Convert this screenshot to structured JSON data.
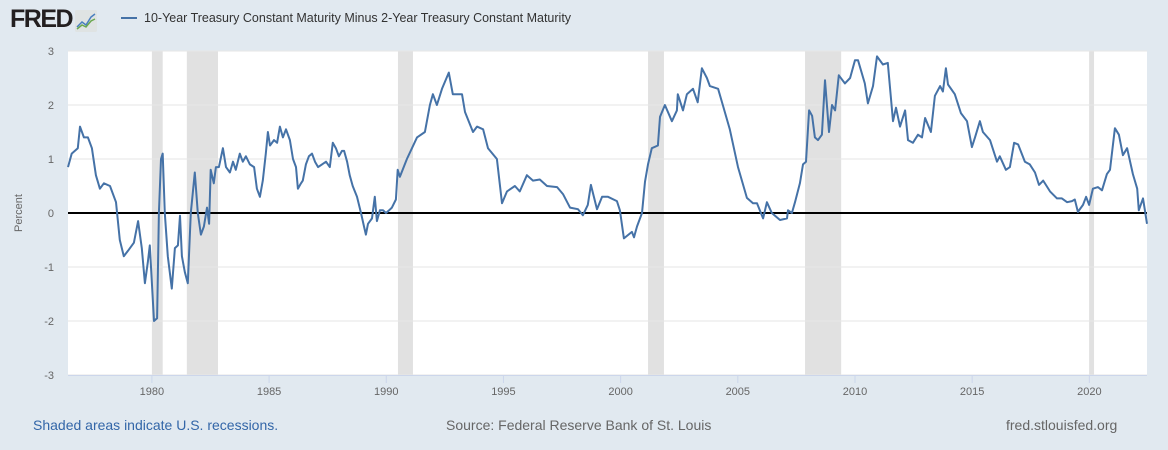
{
  "header": {
    "logo_text": "FRED",
    "legend_label": "10-Year Treasury Constant Maturity Minus 2-Year Treasury Constant Maturity",
    "series_color": "#4572a7"
  },
  "footer": {
    "recession_note": "Shaded areas indicate U.S. recessions.",
    "source": "Source: Federal Reserve Bank of St. Louis",
    "site": "fred.stlouisfed.org"
  },
  "chart_data": {
    "type": "line",
    "title": "10-Year Treasury Constant Maturity Minus 2-Year Treasury Constant Maturity",
    "xlabel": "",
    "ylabel": "Percent",
    "xlim": [
      1976.42,
      2022.46
    ],
    "ylim": [
      -3,
      3
    ],
    "x_ticks": [
      1980,
      1985,
      1990,
      1995,
      2000,
      2005,
      2010,
      2015,
      2020
    ],
    "x_tick_labels": [
      "1980",
      "1985",
      "1990",
      "1995",
      "2000",
      "2005",
      "2010",
      "2015",
      "2020"
    ],
    "y_ticks": [
      -3,
      -2,
      -1,
      0,
      1,
      2,
      3
    ],
    "y_tick_labels": [
      "-3",
      "-2",
      "-1",
      "0",
      "1",
      "2",
      "3"
    ],
    "grid": true,
    "legend_position": "top-left",
    "zero_line": 0,
    "recessions": [
      [
        1980.0,
        1980.46
      ],
      [
        1981.49,
        1982.82
      ],
      [
        1990.5,
        1991.14
      ],
      [
        2001.17,
        2001.85
      ],
      [
        2007.87,
        2009.41
      ],
      [
        2019.99,
        2020.2
      ]
    ],
    "series": [
      {
        "name": "10-Year Treasury Constant Maturity Minus 2-Year Treasury Constant Maturity",
        "points": [
          [
            1976.42,
            0.85
          ],
          [
            1976.58,
            1.1
          ],
          [
            1976.84,
            1.2
          ],
          [
            1976.93,
            1.6
          ],
          [
            1977.1,
            1.4
          ],
          [
            1977.27,
            1.4
          ],
          [
            1977.44,
            1.2
          ],
          [
            1977.61,
            0.7
          ],
          [
            1977.78,
            0.45
          ],
          [
            1977.95,
            0.55
          ],
          [
            1978.21,
            0.5
          ],
          [
            1978.47,
            0.2
          ],
          [
            1978.63,
            -0.5
          ],
          [
            1978.8,
            -0.8
          ],
          [
            1978.98,
            -0.7
          ],
          [
            1979.23,
            -0.55
          ],
          [
            1979.41,
            -0.15
          ],
          [
            1979.57,
            -0.65
          ],
          [
            1979.7,
            -1.3
          ],
          [
            1979.83,
            -0.9
          ],
          [
            1979.91,
            -0.6
          ],
          [
            1980.09,
            -2.0
          ],
          [
            1980.22,
            -1.95
          ],
          [
            1980.3,
            0.0
          ],
          [
            1980.39,
            1.0
          ],
          [
            1980.46,
            1.1
          ],
          [
            1980.55,
            0.0
          ],
          [
            1980.68,
            -0.8
          ],
          [
            1980.85,
            -1.4
          ],
          [
            1980.98,
            -0.65
          ],
          [
            1981.11,
            -0.6
          ],
          [
            1981.2,
            -0.05
          ],
          [
            1981.28,
            -0.8
          ],
          [
            1981.41,
            -1.1
          ],
          [
            1981.53,
            -1.3
          ],
          [
            1981.66,
            0.0
          ],
          [
            1981.83,
            0.75
          ],
          [
            1981.96,
            0.0
          ],
          [
            1982.09,
            -0.4
          ],
          [
            1982.22,
            -0.25
          ],
          [
            1982.35,
            0.1
          ],
          [
            1982.44,
            -0.2
          ],
          [
            1982.51,
            0.8
          ],
          [
            1982.64,
            0.55
          ],
          [
            1982.73,
            0.85
          ],
          [
            1982.86,
            0.85
          ],
          [
            1983.03,
            1.2
          ],
          [
            1983.16,
            0.85
          ],
          [
            1983.33,
            0.75
          ],
          [
            1983.46,
            0.95
          ],
          [
            1983.58,
            0.8
          ],
          [
            1983.75,
            1.1
          ],
          [
            1983.88,
            0.95
          ],
          [
            1984.01,
            1.05
          ],
          [
            1984.18,
            0.9
          ],
          [
            1984.36,
            0.85
          ],
          [
            1984.48,
            0.45
          ],
          [
            1984.61,
            0.3
          ],
          [
            1984.73,
            0.6
          ],
          [
            1984.86,
            1.1
          ],
          [
            1984.95,
            1.5
          ],
          [
            1985.04,
            1.25
          ],
          [
            1985.21,
            1.35
          ],
          [
            1985.34,
            1.3
          ],
          [
            1985.46,
            1.6
          ],
          [
            1985.59,
            1.4
          ],
          [
            1985.72,
            1.55
          ],
          [
            1985.89,
            1.35
          ],
          [
            1986.02,
            1.0
          ],
          [
            1986.15,
            0.85
          ],
          [
            1986.23,
            0.45
          ],
          [
            1986.36,
            0.55
          ],
          [
            1986.44,
            0.6
          ],
          [
            1986.57,
            0.9
          ],
          [
            1986.7,
            1.05
          ],
          [
            1986.83,
            1.1
          ],
          [
            1986.96,
            0.95
          ],
          [
            1987.09,
            0.85
          ],
          [
            1987.26,
            0.9
          ],
          [
            1987.43,
            0.95
          ],
          [
            1987.59,
            0.85
          ],
          [
            1987.72,
            1.3
          ],
          [
            1987.85,
            1.2
          ],
          [
            1987.98,
            1.05
          ],
          [
            1988.11,
            1.15
          ],
          [
            1988.2,
            1.15
          ],
          [
            1988.33,
            0.95
          ],
          [
            1988.44,
            0.7
          ],
          [
            1988.57,
            0.5
          ],
          [
            1988.75,
            0.3
          ],
          [
            1988.92,
            0.0
          ],
          [
            1989.05,
            -0.25
          ],
          [
            1989.13,
            -0.4
          ],
          [
            1989.22,
            -0.2
          ],
          [
            1989.39,
            -0.1
          ],
          [
            1989.51,
            0.3
          ],
          [
            1989.6,
            -0.15
          ],
          [
            1989.73,
            0.05
          ],
          [
            1989.86,
            0.05
          ],
          [
            1989.99,
            0.0
          ],
          [
            1990.12,
            0.05
          ],
          [
            1990.24,
            0.1
          ],
          [
            1990.41,
            0.25
          ],
          [
            1990.49,
            0.8
          ],
          [
            1990.58,
            0.67
          ],
          [
            1990.88,
            1.0
          ],
          [
            1991.31,
            1.4
          ],
          [
            1991.65,
            1.5
          ],
          [
            1991.86,
            2.0
          ],
          [
            1991.99,
            2.2
          ],
          [
            1992.16,
            2.0
          ],
          [
            1992.38,
            2.3
          ],
          [
            1992.67,
            2.6
          ],
          [
            1992.84,
            2.2
          ],
          [
            1993.23,
            2.2
          ],
          [
            1993.36,
            1.87
          ],
          [
            1993.7,
            1.5
          ],
          [
            1993.87,
            1.6
          ],
          [
            1994.13,
            1.55
          ],
          [
            1994.34,
            1.2
          ],
          [
            1994.72,
            1.0
          ],
          [
            1994.94,
            0.18
          ],
          [
            1995.15,
            0.4
          ],
          [
            1995.49,
            0.5
          ],
          [
            1995.7,
            0.4
          ],
          [
            1996.0,
            0.7
          ],
          [
            1996.26,
            0.6
          ],
          [
            1996.55,
            0.62
          ],
          [
            1996.86,
            0.5
          ],
          [
            1997.29,
            0.48
          ],
          [
            1997.54,
            0.35
          ],
          [
            1997.84,
            0.1
          ],
          [
            1998.18,
            0.07
          ],
          [
            1998.39,
            -0.04
          ],
          [
            1998.6,
            0.15
          ],
          [
            1998.73,
            0.52
          ],
          [
            1998.99,
            0.07
          ],
          [
            1999.21,
            0.3
          ],
          [
            1999.46,
            0.3
          ],
          [
            1999.84,
            0.22
          ],
          [
            1999.97,
            0.05
          ],
          [
            2000.14,
            -0.47
          ],
          [
            2000.48,
            -0.35
          ],
          [
            2000.57,
            -0.45
          ],
          [
            2000.7,
            -0.25
          ],
          [
            2000.91,
            0.0
          ],
          [
            2001.04,
            0.58
          ],
          [
            2001.17,
            0.9
          ],
          [
            2001.33,
            1.2
          ],
          [
            2001.59,
            1.25
          ],
          [
            2001.68,
            1.78
          ],
          [
            2001.89,
            2.0
          ],
          [
            2002.19,
            1.7
          ],
          [
            2002.4,
            1.9
          ],
          [
            2002.44,
            2.2
          ],
          [
            2002.66,
            1.9
          ],
          [
            2002.83,
            2.2
          ],
          [
            2003.09,
            2.3
          ],
          [
            2003.29,
            2.05
          ],
          [
            2003.47,
            2.68
          ],
          [
            2003.68,
            2.5
          ],
          [
            2003.81,
            2.35
          ],
          [
            2004.16,
            2.3
          ],
          [
            2004.36,
            2.0
          ],
          [
            2004.66,
            1.55
          ],
          [
            2005.01,
            0.85
          ],
          [
            2005.39,
            0.28
          ],
          [
            2005.65,
            0.18
          ],
          [
            2005.82,
            0.18
          ],
          [
            2006.08,
            -0.1
          ],
          [
            2006.24,
            0.2
          ],
          [
            2006.45,
            0.0
          ],
          [
            2006.8,
            -0.13
          ],
          [
            2007.1,
            -0.1
          ],
          [
            2007.14,
            0.05
          ],
          [
            2007.31,
            0.0
          ],
          [
            2007.44,
            0.2
          ],
          [
            2007.65,
            0.55
          ],
          [
            2007.78,
            0.9
          ],
          [
            2007.91,
            0.95
          ],
          [
            2008.04,
            1.9
          ],
          [
            2008.17,
            1.8
          ],
          [
            2008.29,
            1.4
          ],
          [
            2008.42,
            1.35
          ],
          [
            2008.59,
            1.45
          ],
          [
            2008.72,
            2.46
          ],
          [
            2008.89,
            1.5
          ],
          [
            2009.02,
            2.0
          ],
          [
            2009.15,
            1.9
          ],
          [
            2009.31,
            2.55
          ],
          [
            2009.57,
            2.4
          ],
          [
            2009.79,
            2.5
          ],
          [
            2010.0,
            2.83
          ],
          [
            2010.13,
            2.83
          ],
          [
            2010.42,
            2.4
          ],
          [
            2010.55,
            2.03
          ],
          [
            2010.77,
            2.35
          ],
          [
            2010.94,
            2.9
          ],
          [
            2011.19,
            2.75
          ],
          [
            2011.4,
            2.78
          ],
          [
            2011.62,
            1.7
          ],
          [
            2011.75,
            1.95
          ],
          [
            2011.92,
            1.6
          ],
          [
            2012.14,
            1.9
          ],
          [
            2012.26,
            1.35
          ],
          [
            2012.47,
            1.3
          ],
          [
            2012.69,
            1.45
          ],
          [
            2012.86,
            1.4
          ],
          [
            2012.99,
            1.76
          ],
          [
            2013.24,
            1.5
          ],
          [
            2013.41,
            2.17
          ],
          [
            2013.63,
            2.35
          ],
          [
            2013.75,
            2.25
          ],
          [
            2013.88,
            2.68
          ],
          [
            2013.97,
            2.38
          ],
          [
            2014.26,
            2.2
          ],
          [
            2014.52,
            1.85
          ],
          [
            2014.78,
            1.7
          ],
          [
            2014.99,
            1.22
          ],
          [
            2015.12,
            1.4
          ],
          [
            2015.33,
            1.7
          ],
          [
            2015.46,
            1.5
          ],
          [
            2015.76,
            1.35
          ],
          [
            2016.06,
            0.95
          ],
          [
            2016.18,
            1.05
          ],
          [
            2016.44,
            0.8
          ],
          [
            2016.61,
            0.85
          ],
          [
            2016.79,
            1.3
          ],
          [
            2016.96,
            1.27
          ],
          [
            2017.25,
            0.95
          ],
          [
            2017.46,
            0.9
          ],
          [
            2017.68,
            0.75
          ],
          [
            2017.85,
            0.52
          ],
          [
            2018.03,
            0.6
          ],
          [
            2018.32,
            0.4
          ],
          [
            2018.62,
            0.27
          ],
          [
            2018.83,
            0.27
          ],
          [
            2019.05,
            0.2
          ],
          [
            2019.26,
            0.22
          ],
          [
            2019.38,
            0.25
          ],
          [
            2019.51,
            0.02
          ],
          [
            2019.73,
            0.15
          ],
          [
            2019.86,
            0.3
          ],
          [
            2019.99,
            0.15
          ],
          [
            2020.15,
            0.45
          ],
          [
            2020.37,
            0.48
          ],
          [
            2020.54,
            0.42
          ],
          [
            2020.75,
            0.72
          ],
          [
            2020.88,
            0.8
          ],
          [
            2021.09,
            1.57
          ],
          [
            2021.26,
            1.45
          ],
          [
            2021.43,
            1.07
          ],
          [
            2021.61,
            1.2
          ],
          [
            2021.86,
            0.72
          ],
          [
            2022.04,
            0.45
          ],
          [
            2022.11,
            0.05
          ],
          [
            2022.29,
            0.27
          ],
          [
            2022.37,
            0.05
          ],
          [
            2022.46,
            -0.2
          ]
        ]
      }
    ]
  }
}
